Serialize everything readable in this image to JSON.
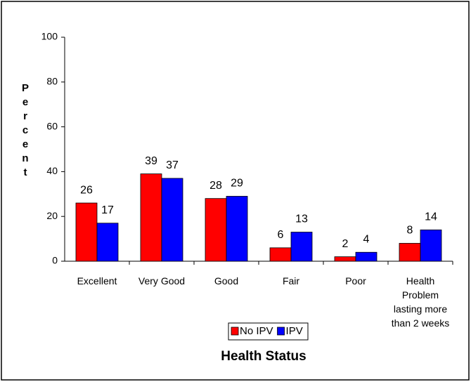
{
  "chart_data": {
    "type": "bar",
    "categories": [
      "Excellent",
      "Very Good",
      "Good",
      "Fair",
      "Poor",
      "Health Problem lasting more than 2 weeks"
    ],
    "series": [
      {
        "name": "No IPV",
        "color": "#ff0000",
        "values": [
          26,
          39,
          28,
          6,
          2,
          8
        ]
      },
      {
        "name": "IPV",
        "color": "#0000ff",
        "values": [
          17,
          37,
          29,
          13,
          4,
          14
        ]
      }
    ],
    "ylim": [
      0,
      100
    ],
    "yticks": [
      0,
      20,
      40,
      60,
      80,
      100
    ],
    "ylabel": "Percent",
    "xlabel": "Health Status",
    "legend": "bottom"
  }
}
